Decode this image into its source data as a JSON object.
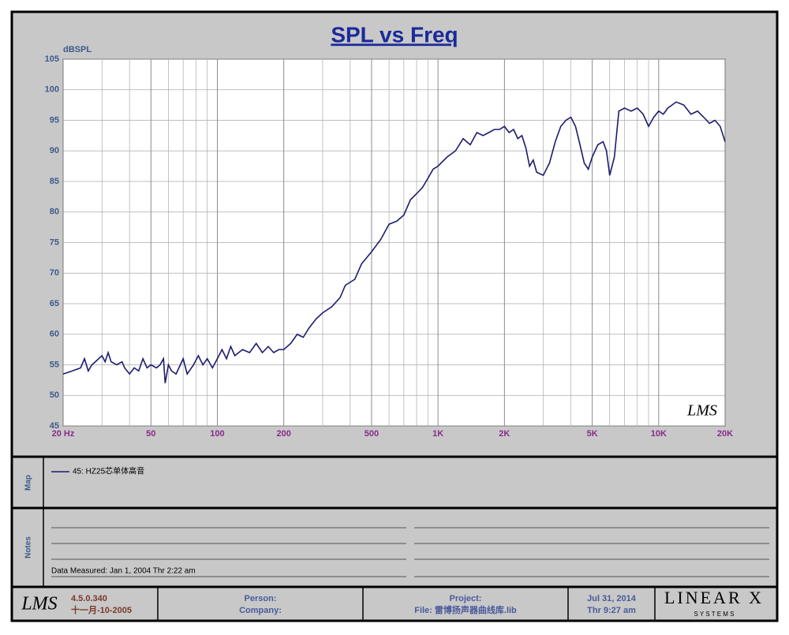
{
  "chart_data": {
    "type": "line",
    "title": "SPL vs Freq",
    "y_label": "dBSPL",
    "annotation": "LMS",
    "x_log": true,
    "grid": true,
    "x": [
      20,
      22,
      24,
      25,
      26,
      27,
      28,
      30,
      31,
      32,
      33,
      35,
      37,
      38,
      40,
      42,
      44,
      46,
      48,
      50,
      53,
      55,
      57,
      58,
      60,
      62,
      65,
      70,
      73,
      78,
      82,
      86,
      90,
      95,
      100,
      105,
      110,
      115,
      120,
      130,
      140,
      150,
      160,
      170,
      180,
      190,
      200,
      215,
      230,
      245,
      260,
      280,
      300,
      330,
      360,
      380,
      420,
      450,
      500,
      550,
      600,
      650,
      700,
      750,
      800,
      850,
      900,
      950,
      1000,
      1100,
      1200,
      1300,
      1400,
      1500,
      1600,
      1700,
      1800,
      1900,
      2000,
      2100,
      2200,
      2300,
      2400,
      2500,
      2600,
      2700,
      2800,
      3000,
      3200,
      3400,
      3600,
      3800,
      4000,
      4200,
      4400,
      4600,
      4800,
      5000,
      5300,
      5600,
      5800,
      6000,
      6300,
      6600,
      7000,
      7500,
      8000,
      8500,
      9000,
      9500,
      10000,
      10500,
      11000,
      11500,
      12000,
      13000,
      14000,
      15000,
      16000,
      17000,
      18000,
      19000,
      20000
    ],
    "series": [
      {
        "name": "45: HZ25芯单体高音",
        "color": "#1c1c6e",
        "values": [
          53.5,
          54,
          54.5,
          56,
          54,
          55,
          55.5,
          56.5,
          55.5,
          57,
          55.5,
          55,
          55.5,
          54.5,
          53.5,
          54.5,
          54,
          56,
          54.5,
          55,
          54.5,
          55,
          56,
          52,
          55,
          54,
          53.5,
          56,
          53.5,
          55,
          56.5,
          55,
          56,
          54.5,
          56,
          57.5,
          56,
          58,
          56.5,
          57.5,
          57,
          58.5,
          57,
          58,
          57,
          57.5,
          57.5,
          58.5,
          60,
          59.5,
          61,
          62.5,
          63.5,
          64.5,
          66,
          68,
          69,
          71.5,
          73.5,
          75.5,
          78,
          78.5,
          79.5,
          82,
          83,
          84,
          85.5,
          87,
          87.5,
          89,
          90,
          92,
          91,
          93,
          92.5,
          93,
          93.5,
          93.5,
          94,
          93,
          93.5,
          92,
          92.5,
          90.5,
          87.5,
          88.5,
          86.5,
          86,
          88,
          91.5,
          94,
          95,
          95.5,
          94,
          91,
          88,
          87,
          89,
          91,
          91.5,
          90,
          86,
          89,
          96.5,
          97,
          96.5,
          97,
          96,
          94,
          95.5,
          96.5,
          96,
          97,
          97.5,
          98,
          97.5,
          96,
          96.5,
          95.5,
          94.5,
          95,
          94,
          91.5
        ]
      }
    ],
    "xlim": [
      20,
      20000
    ],
    "ylim": [
      45,
      105
    ],
    "xticks": [
      {
        "value": 20,
        "label": "20  Hz"
      },
      50,
      100,
      200,
      500,
      {
        "value": 1000,
        "label": "1K"
      },
      {
        "value": 2000,
        "label": "2K"
      },
      {
        "value": 5000,
        "label": "5K"
      },
      {
        "value": 10000,
        "label": "10K"
      },
      {
        "value": 20000,
        "label": "20K"
      }
    ],
    "yticks": [
      45,
      50,
      55,
      60,
      65,
      70,
      75,
      80,
      85,
      90,
      95,
      100,
      105
    ]
  },
  "map_panel": {
    "label": "Map"
  },
  "notes_panel": {
    "label": "Notes",
    "measured": "Data Measured: Jan  1, 2004  Thr  2:22 am"
  },
  "footer": {
    "logo": "LMS",
    "version": "4.5.0.340",
    "build_date": "十一月-10-2005",
    "person": "Person:",
    "company": "Company:",
    "project": "Project:",
    "file": "File: 雷博扬声器曲线库.lib",
    "date": "Jul 31, 2014",
    "time": "Thr  9:27 am",
    "brand": "LINEAR X",
    "brand_sub": "S Y S T E M S"
  }
}
